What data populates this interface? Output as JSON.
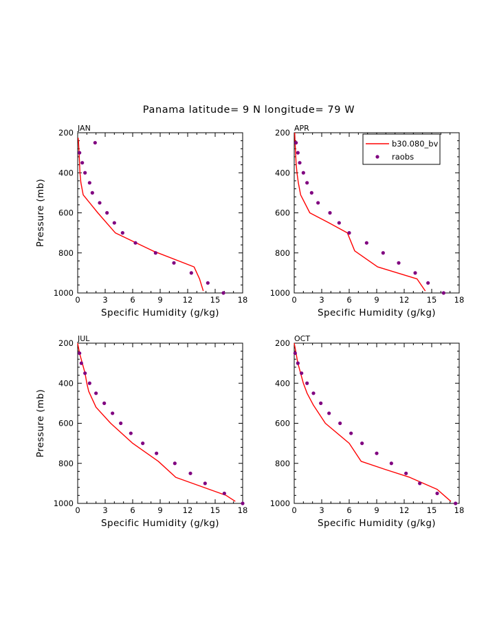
{
  "figure": {
    "title": "Panama  latitude= 9 N longitude= 79 W",
    "model_color": "#ff0000",
    "obs_color": "#800080",
    "legend": {
      "model_label": "b30.080_bv",
      "obs_label": "raobs"
    }
  },
  "chart_data": [
    {
      "type": "line",
      "title": "JAN",
      "xlabel": "Specific Humidity (g/kg)",
      "ylabel": "Pressure (mb)",
      "xlim": [
        0,
        18
      ],
      "ylim": [
        1000,
        200
      ],
      "y_inverted": true,
      "xticks": [
        "0",
        "3",
        "6",
        "9",
        "12",
        "15",
        "18"
      ],
      "yticks": [
        "200",
        "400",
        "600",
        "800",
        "1000"
      ],
      "series": [
        {
          "name": "b30.080_bv",
          "style": "line",
          "x": [
            0.05,
            0.1,
            0.15,
            0.2,
            0.25,
            0.35,
            0.6,
            2.2,
            4.1,
            8.2,
            12.7,
            13.3,
            13.7
          ],
          "y": [
            225,
            250,
            300,
            350,
            400,
            450,
            510,
            600,
            700,
            790,
            870,
            930,
            990
          ]
        },
        {
          "name": "raobs",
          "style": "points",
          "x": [
            1.9,
            0.2,
            0.5,
            0.8,
            1.3,
            1.6,
            2.4,
            3.2,
            4.0,
            4.9,
            6.3,
            8.5,
            10.5,
            12.4,
            14.2,
            15.9
          ],
          "y": [
            250,
            300,
            350,
            400,
            450,
            500,
            550,
            600,
            650,
            700,
            750,
            800,
            850,
            900,
            950,
            1000
          ]
        }
      ]
    },
    {
      "type": "line",
      "title": "APR",
      "xlabel": "Specific Humidity (g/kg)",
      "ylabel": "",
      "xlim": [
        0,
        18
      ],
      "ylim": [
        1000,
        200
      ],
      "y_inverted": true,
      "xticks": [
        "0",
        "3",
        "6",
        "9",
        "12",
        "15",
        "18"
      ],
      "yticks": [
        "200",
        "400",
        "600",
        "800",
        "1000"
      ],
      "legend": "top-right",
      "series": [
        {
          "name": "b30.080_bv",
          "style": "line",
          "x": [
            0.05,
            0.1,
            0.15,
            0.2,
            0.3,
            0.45,
            0.7,
            1.7,
            3.8,
            5.8,
            6.6,
            9.1,
            13.4,
            14.3
          ],
          "y": [
            200,
            250,
            300,
            350,
            400,
            450,
            510,
            600,
            650,
            700,
            790,
            870,
            930,
            990
          ]
        },
        {
          "name": "raobs",
          "style": "points",
          "x": [
            0.2,
            0.4,
            0.6,
            1.0,
            1.4,
            1.9,
            2.6,
            3.9,
            4.9,
            6.0,
            7.9,
            9.7,
            11.4,
            13.2,
            14.6,
            16.3
          ],
          "y": [
            250,
            300,
            350,
            400,
            450,
            500,
            550,
            600,
            650,
            700,
            750,
            800,
            850,
            900,
            950,
            1000
          ]
        }
      ]
    },
    {
      "type": "line",
      "title": "JUL",
      "xlabel": "Specific Humidity (g/kg)",
      "ylabel": "Pressure (mb)",
      "xlim": [
        0,
        18
      ],
      "ylim": [
        1000,
        200
      ],
      "y_inverted": true,
      "xticks": [
        "0",
        "3",
        "6",
        "9",
        "12",
        "15",
        "18"
      ],
      "yticks": [
        "200",
        "400",
        "600",
        "800",
        "1000"
      ],
      "series": [
        {
          "name": "b30.080_bv",
          "style": "line",
          "x": [
            0.0,
            0.2,
            0.5,
            0.8,
            1.0,
            1.2,
            2.0,
            3.6,
            6.0,
            8.8,
            10.7,
            16.2,
            17.2
          ],
          "y": [
            200,
            250,
            300,
            350,
            400,
            440,
            520,
            600,
            700,
            790,
            870,
            960,
            990
          ]
        },
        {
          "name": "raobs",
          "style": "points",
          "x": [
            0.2,
            0.4,
            0.8,
            1.3,
            2.0,
            2.9,
            3.8,
            4.7,
            5.8,
            7.1,
            8.6,
            10.6,
            12.3,
            13.9,
            16.0,
            18.0
          ],
          "y": [
            250,
            300,
            350,
            400,
            450,
            500,
            550,
            600,
            650,
            700,
            750,
            800,
            850,
            900,
            950,
            1000
          ]
        }
      ]
    },
    {
      "type": "line",
      "title": "OCT",
      "xlabel": "Specific Humidity (g/kg)",
      "ylabel": "",
      "xlim": [
        0,
        18
      ],
      "ylim": [
        1000,
        200
      ],
      "y_inverted": true,
      "xticks": [
        "0",
        "3",
        "6",
        "9",
        "12",
        "15",
        "18"
      ],
      "yticks": [
        "200",
        "400",
        "600",
        "800",
        "1000"
      ],
      "series": [
        {
          "name": "b30.080_bv",
          "style": "line",
          "x": [
            0.0,
            0.2,
            0.4,
            0.7,
            1.0,
            1.4,
            2.1,
            3.4,
            6.0,
            7.3,
            9.9,
            12.6,
            15.6,
            16.6,
            17.1
          ],
          "y": [
            200,
            250,
            300,
            350,
            400,
            450,
            510,
            600,
            700,
            790,
            830,
            870,
            930,
            970,
            990
          ]
        },
        {
          "name": "raobs",
          "style": "points",
          "x": [
            0.1,
            0.4,
            0.8,
            1.4,
            2.1,
            2.9,
            3.8,
            5.0,
            6.2,
            7.4,
            9.0,
            10.6,
            12.2,
            13.7,
            15.6,
            17.6
          ],
          "y": [
            250,
            300,
            350,
            400,
            450,
            500,
            550,
            600,
            650,
            700,
            750,
            800,
            850,
            900,
            950,
            1000
          ]
        }
      ]
    }
  ]
}
